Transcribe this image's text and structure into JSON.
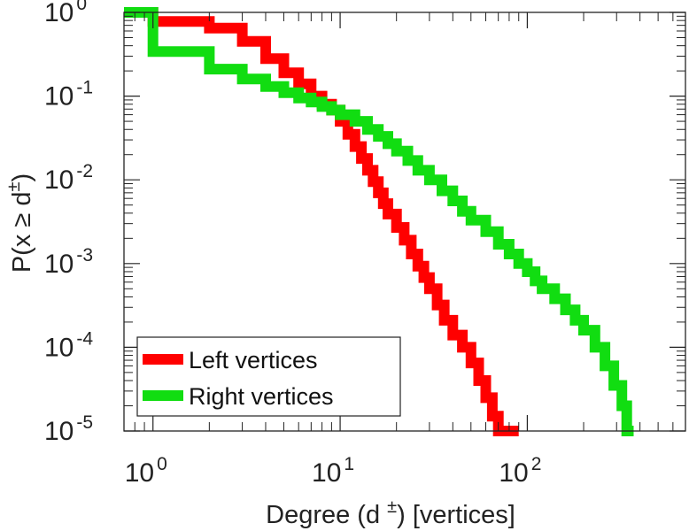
{
  "chart_data": {
    "type": "line",
    "title": "",
    "xscale": "log",
    "yscale": "log",
    "xlim": [
      0.7,
      700
    ],
    "ylim": [
      1e-05,
      1
    ],
    "xticks": [
      {
        "base": "10",
        "exp": "0",
        "value": 1
      },
      {
        "base": "10",
        "exp": "1",
        "value": 10
      },
      {
        "base": "10",
        "exp": "2",
        "value": 100
      }
    ],
    "yticks": [
      {
        "base": "10",
        "exp": "0",
        "value": 1
      },
      {
        "base": "10",
        "exp": "-1",
        "value": 0.1
      },
      {
        "base": "10",
        "exp": "-2",
        "value": 0.01
      },
      {
        "base": "10",
        "exp": "-3",
        "value": 0.001
      },
      {
        "base": "10",
        "exp": "-4",
        "value": 0.0001
      },
      {
        "base": "10",
        "exp": "-5",
        "value": 1e-05
      }
    ],
    "xlabel": {
      "prefix": "Degree (d ",
      "sup": "±",
      "suffix": ") [vertices]"
    },
    "ylabel": {
      "prefix": "P(x ≥ d",
      "sup": "±",
      "suffix": ")"
    },
    "legend": {
      "position": "bottom-left"
    },
    "series": [
      {
        "name": "Left vertices",
        "color": "#ff0000",
        "drawstyle": "steps",
        "points": [
          [
            0.7,
            1.0
          ],
          [
            1.0,
            0.78
          ],
          [
            2.0,
            0.65
          ],
          [
            3.0,
            0.45
          ],
          [
            4.0,
            0.28
          ],
          [
            5.0,
            0.19
          ],
          [
            6.0,
            0.14
          ],
          [
            7.0,
            0.1
          ],
          [
            8.0,
            0.08
          ],
          [
            9.0,
            0.068
          ],
          [
            10.0,
            0.05
          ],
          [
            11.0,
            0.035
          ],
          [
            12.0,
            0.025
          ],
          [
            13.0,
            0.018
          ],
          [
            14.0,
            0.013
          ],
          [
            15.0,
            0.0095
          ],
          [
            16.0,
            0.007
          ],
          [
            17.0,
            0.0052
          ],
          [
            18.0,
            0.0039
          ],
          [
            20.0,
            0.0027
          ],
          [
            22.0,
            0.0019
          ],
          [
            24.0,
            0.0013
          ],
          [
            26.0,
            0.00093
          ],
          [
            28.0,
            0.00068
          ],
          [
            30.0,
            0.0005
          ],
          [
            33.0,
            0.00032
          ],
          [
            36.0,
            0.00021
          ],
          [
            40.0,
            0.00014
          ],
          [
            45.0,
            0.0001
          ],
          [
            50.0,
            6.5e-05
          ],
          [
            55.0,
            4e-05
          ],
          [
            60.0,
            2.5e-05
          ],
          [
            65.0,
            1.5e-05
          ],
          [
            70.0,
            1e-05
          ],
          [
            90.0,
            1e-05
          ]
        ]
      },
      {
        "name": "Right vertices",
        "color": "#11dd11",
        "drawstyle": "steps",
        "points": [
          [
            0.7,
            1.0
          ],
          [
            1.0,
            0.34
          ],
          [
            2.0,
            0.21
          ],
          [
            3.0,
            0.16
          ],
          [
            4.0,
            0.13
          ],
          [
            5.0,
            0.11
          ],
          [
            6.0,
            0.095
          ],
          [
            7.0,
            0.085
          ],
          [
            8.0,
            0.075
          ],
          [
            9.0,
            0.068
          ],
          [
            10.0,
            0.06
          ],
          [
            12.0,
            0.05
          ],
          [
            14.0,
            0.04
          ],
          [
            16.0,
            0.033
          ],
          [
            18.0,
            0.027
          ],
          [
            20.0,
            0.022
          ],
          [
            23.0,
            0.017
          ],
          [
            26.0,
            0.013
          ],
          [
            30.0,
            0.01
          ],
          [
            35.0,
            0.0074
          ],
          [
            40.0,
            0.0056
          ],
          [
            45.0,
            0.0042
          ],
          [
            50.0,
            0.0033
          ],
          [
            60.0,
            0.0024
          ],
          [
            70.0,
            0.0017
          ],
          [
            80.0,
            0.0013
          ],
          [
            90.0,
            0.001
          ],
          [
            100.0,
            0.0008
          ],
          [
            110.0,
            0.00062
          ],
          [
            120.0,
            0.0005
          ],
          [
            140.0,
            0.00038
          ],
          [
            160.0,
            0.00028
          ],
          [
            180.0,
            0.00021
          ],
          [
            200.0,
            0.00016
          ],
          [
            230.0,
            0.0001
          ],
          [
            260.0,
            6e-05
          ],
          [
            290.0,
            3.5e-05
          ],
          [
            320.0,
            2e-05
          ],
          [
            340.0,
            1e-05
          ],
          [
            370.0,
            1e-05
          ]
        ]
      }
    ]
  }
}
